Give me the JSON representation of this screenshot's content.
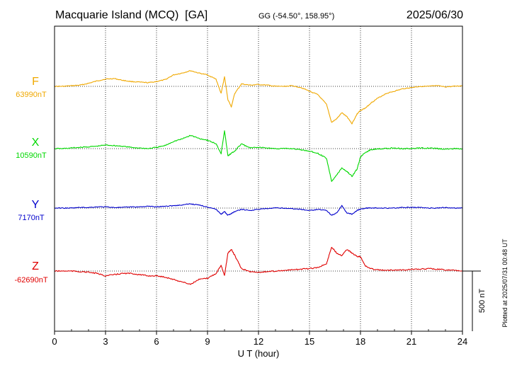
{
  "header": {
    "station": "Macquarie Island (MCQ)  [GA]",
    "coords": "GG (-54.50°, 158.95°)",
    "date": "2025/06/30"
  },
  "footer": {
    "plotted": "Plotted at 2025/07/31 00:48 UT"
  },
  "chart_data": {
    "type": "line",
    "title": "Macquarie Island (MCQ)  [GA]",
    "xlabel": "U T (hour)",
    "xlim": [
      0,
      24
    ],
    "xticks": [
      "0",
      "3",
      "6",
      "9",
      "12",
      "15",
      "18",
      "21",
      "24"
    ],
    "scale_bar": {
      "label": "500 nT",
      "value": 500
    },
    "grid": true,
    "x": [
      0,
      0.5,
      1,
      1.5,
      2,
      2.5,
      3,
      3.5,
      4,
      4.5,
      5,
      5.5,
      6,
      6.5,
      7,
      7.5,
      8,
      8.5,
      9,
      9.5,
      9.8,
      10,
      10.2,
      10.4,
      10.6,
      11,
      11.5,
      12,
      12.5,
      13,
      13.5,
      14,
      14.5,
      15,
      15.5,
      16,
      16.3,
      16.6,
      16.9,
      17.2,
      17.5,
      17.8,
      18,
      18.3,
      18.6,
      19,
      19.5,
      20,
      20.5,
      21,
      21.5,
      22,
      22.5,
      23,
      23.5,
      24
    ],
    "series": [
      {
        "name": "F",
        "baseline_label": "63990nT",
        "color": "#f0a800",
        "values": [
          0,
          0,
          5,
          10,
          25,
          45,
          60,
          65,
          50,
          40,
          35,
          30,
          40,
          55,
          95,
          110,
          130,
          110,
          95,
          60,
          -60,
          80,
          -110,
          -170,
          -60,
          20,
          10,
          15,
          10,
          0,
          0,
          5,
          -10,
          -40,
          -70,
          -150,
          -300,
          -270,
          -220,
          -250,
          -310,
          -230,
          -200,
          -180,
          -140,
          -100,
          -60,
          -40,
          -20,
          -10,
          0,
          0,
          5,
          -5,
          0,
          5
        ],
        "noise": 0.6
      },
      {
        "name": "X",
        "baseline_label": "10590nT",
        "color": "#00d800",
        "values": [
          0,
          0,
          5,
          10,
          15,
          20,
          30,
          25,
          20,
          10,
          5,
          0,
          10,
          25,
          60,
          80,
          110,
          85,
          70,
          40,
          -40,
          150,
          -60,
          -40,
          -20,
          40,
          5,
          10,
          5,
          0,
          0,
          0,
          -10,
          -20,
          -40,
          -80,
          -270,
          -220,
          -160,
          -190,
          -230,
          -170,
          -70,
          -30,
          -10,
          0,
          0,
          5,
          0,
          0,
          5,
          5,
          0,
          -5,
          0,
          0
        ],
        "noise": 0.8
      },
      {
        "name": "Y",
        "baseline_label": "7170nT",
        "color": "#0000cc",
        "values": [
          0,
          0,
          0,
          5,
          5,
          10,
          10,
          5,
          5,
          10,
          10,
          15,
          10,
          15,
          20,
          25,
          35,
          25,
          10,
          -10,
          -50,
          -30,
          -60,
          -45,
          -30,
          -10,
          -20,
          -10,
          -5,
          0,
          0,
          -5,
          -10,
          -20,
          -10,
          -20,
          -60,
          -40,
          20,
          -40,
          -50,
          -20,
          -10,
          0,
          0,
          0,
          0,
          0,
          5,
          5,
          5,
          0,
          0,
          5,
          0,
          0
        ],
        "noise": 0.6
      },
      {
        "name": "Z",
        "baseline_label": "-62690nT",
        "color": "#e00000",
        "values": [
          0,
          0,
          0,
          -5,
          -10,
          -20,
          -40,
          -30,
          -20,
          -20,
          -30,
          -40,
          -40,
          -50,
          -70,
          -90,
          -110,
          -70,
          -60,
          -20,
          50,
          -40,
          150,
          180,
          130,
          20,
          -5,
          -10,
          -5,
          0,
          5,
          10,
          15,
          20,
          30,
          60,
          200,
          150,
          130,
          180,
          150,
          120,
          120,
          40,
          20,
          10,
          5,
          10,
          10,
          15,
          15,
          20,
          15,
          10,
          5,
          0
        ],
        "noise": 0.8
      }
    ]
  }
}
